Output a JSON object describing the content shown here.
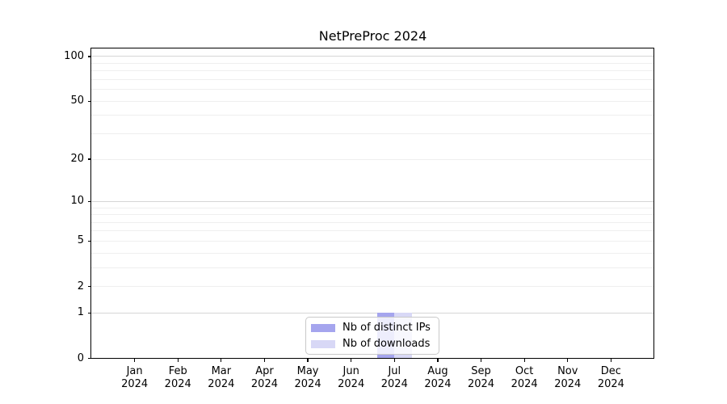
{
  "chart_data": {
    "type": "bar",
    "title": "NetPreProc 2024",
    "year_label": "2024",
    "categories": [
      "Jan",
      "Feb",
      "Mar",
      "Apr",
      "May",
      "Jun",
      "Jul",
      "Aug",
      "Sep",
      "Oct",
      "Nov",
      "Dec"
    ],
    "series": [
      {
        "name": "Nb of distinct IPs",
        "color": "#a5a5ee",
        "values": [
          0,
          0,
          0,
          0,
          0,
          0,
          1,
          0,
          0,
          0,
          0,
          0
        ]
      },
      {
        "name": "Nb of downloads",
        "color": "#d8d8f6",
        "values": [
          0,
          0,
          0,
          0,
          0,
          0,
          1,
          0,
          0,
          0,
          0,
          0
        ]
      }
    ],
    "y_axis": {
      "scale": "log1p",
      "tick_values": [
        0,
        1,
        2,
        5,
        10,
        20,
        50,
        100
      ],
      "major_grid_values": [
        1,
        10,
        100
      ],
      "minor_grid_values": [
        2,
        3,
        4,
        5,
        6,
        7,
        8,
        9,
        20,
        30,
        40,
        50,
        60,
        70,
        80,
        90
      ],
      "ylim": [
        0,
        113
      ]
    },
    "grid": true,
    "legend_position": "lower center"
  },
  "colors": {
    "background": "#ffffff",
    "spine": "#000000",
    "major_grid": "#d6d6d6",
    "minor_grid": "#efefef",
    "tick_text": "#000000",
    "legend_border": "#c9c9c9",
    "legend_background": "rgba(255,255,255,0.8)"
  }
}
